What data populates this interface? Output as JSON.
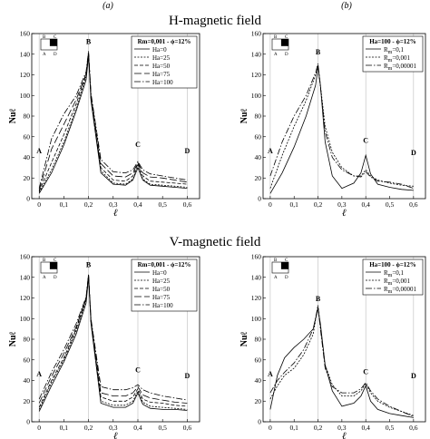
{
  "figure": {
    "panel_labels": [
      "(a)",
      "(b)"
    ],
    "row_titles": [
      "H-magnetic field",
      "V-magnetic field"
    ],
    "xlabel": "ℓ",
    "ylabel": "Nuℓ",
    "inset_corner_labels": [
      "B",
      "C",
      "A",
      "D"
    ]
  },
  "chart_data": [
    {
      "type": "line",
      "row": 0,
      "col": 0,
      "legend_title": "Rm=0,001 - ϕ=12%",
      "legend_position": "top-right",
      "xlim": [
        -0.03,
        0.65
      ],
      "ylim": [
        0,
        160
      ],
      "xticks": [
        "0",
        "0,1",
        "0,2",
        "0,3",
        "0,4",
        "0,5",
        "0,6"
      ],
      "yticks": [
        "0",
        "20",
        "40",
        "60",
        "80",
        "100",
        "120",
        "140",
        "160"
      ],
      "point_labels": [
        {
          "text": "A",
          "x": 0.0,
          "y": 44
        },
        {
          "text": "B",
          "x": 0.2,
          "y": 150
        },
        {
          "text": "C",
          "x": 0.4,
          "y": 50
        },
        {
          "text": "D",
          "x": 0.6,
          "y": 44
        }
      ],
      "series": [
        {
          "name": "Ha=0",
          "dash": "solid",
          "x": [
            0,
            0.05,
            0.1,
            0.15,
            0.19,
            0.2,
            0.21,
            0.25,
            0.3,
            0.35,
            0.38,
            0.4,
            0.42,
            0.45,
            0.5,
            0.55,
            0.6
          ],
          "y": [
            5,
            25,
            52,
            85,
            115,
            138,
            95,
            25,
            14,
            13,
            18,
            30,
            18,
            13,
            12,
            11,
            10
          ]
        },
        {
          "name": "Ha=25",
          "dash": "2,1.5",
          "x": [
            0,
            0.05,
            0.1,
            0.15,
            0.19,
            0.2,
            0.21,
            0.25,
            0.3,
            0.35,
            0.38,
            0.4,
            0.42,
            0.45,
            0.5,
            0.55,
            0.6
          ],
          "y": [
            6,
            28,
            55,
            88,
            118,
            140,
            96,
            27,
            15,
            14,
            19,
            32,
            19,
            14,
            13,
            12,
            11
          ]
        },
        {
          "name": "Ha=50",
          "dash": "4,2",
          "x": [
            0,
            0.05,
            0.1,
            0.15,
            0.19,
            0.2,
            0.21,
            0.25,
            0.3,
            0.35,
            0.38,
            0.4,
            0.42,
            0.45,
            0.5,
            0.55,
            0.6
          ],
          "y": [
            7,
            35,
            62,
            92,
            120,
            141,
            98,
            30,
            18,
            17,
            22,
            34,
            22,
            17,
            16,
            15,
            14
          ]
        },
        {
          "name": "Ha=75",
          "dash": "8,3",
          "x": [
            0,
            0.05,
            0.1,
            0.15,
            0.19,
            0.2,
            0.21,
            0.25,
            0.3,
            0.35,
            0.38,
            0.4,
            0.42,
            0.45,
            0.5,
            0.55,
            0.6
          ],
          "y": [
            8,
            48,
            72,
            96,
            121,
            142,
            100,
            34,
            22,
            21,
            25,
            35,
            25,
            21,
            20,
            18,
            16
          ]
        },
        {
          "name": "Ha=100",
          "dash": "7,2,1.5,2",
          "x": [
            0,
            0.05,
            0.1,
            0.15,
            0.19,
            0.2,
            0.21,
            0.25,
            0.3,
            0.35,
            0.38,
            0.4,
            0.42,
            0.45,
            0.5,
            0.55,
            0.6
          ],
          "y": [
            10,
            58,
            82,
            100,
            123,
            143,
            102,
            38,
            26,
            25,
            28,
            36,
            28,
            24,
            22,
            20,
            18
          ]
        }
      ]
    },
    {
      "type": "line",
      "row": 0,
      "col": 1,
      "legend_title": "Ha=100 - ϕ=12%",
      "legend_position": "top-right",
      "xlim": [
        -0.03,
        0.65
      ],
      "ylim": [
        0,
        160
      ],
      "xticks": [
        "0",
        "0,1",
        "0,2",
        "0,3",
        "0,4",
        "0,5",
        "0,6"
      ],
      "yticks": [
        "0",
        "20",
        "40",
        "60",
        "80",
        "100",
        "120",
        "140",
        "160"
      ],
      "point_labels": [
        {
          "text": "A",
          "x": 0.0,
          "y": 44
        },
        {
          "text": "B",
          "x": 0.2,
          "y": 140
        },
        {
          "text": "C",
          "x": 0.4,
          "y": 54
        },
        {
          "text": "D",
          "x": 0.6,
          "y": 42
        }
      ],
      "series": [
        {
          "name": "Rm=0,1",
          "dash": "solid",
          "x": [
            0,
            0.05,
            0.1,
            0.15,
            0.19,
            0.2,
            0.21,
            0.23,
            0.26,
            0.3,
            0.35,
            0.38,
            0.4,
            0.42,
            0.45,
            0.5,
            0.55,
            0.6
          ],
          "y": [
            5,
            25,
            50,
            80,
            110,
            128,
            110,
            55,
            22,
            10,
            15,
            25,
            42,
            24,
            14,
            11,
            9,
            8
          ]
        },
        {
          "name": "Rm=0,001",
          "dash": "2,1.5",
          "x": [
            0,
            0.05,
            0.1,
            0.15,
            0.19,
            0.2,
            0.21,
            0.23,
            0.26,
            0.3,
            0.35,
            0.38,
            0.4,
            0.42,
            0.45,
            0.5,
            0.55,
            0.6
          ],
          "y": [
            10,
            42,
            70,
            95,
            120,
            130,
            110,
            70,
            45,
            30,
            22,
            22,
            28,
            22,
            18,
            15,
            13,
            12
          ]
        },
        {
          "name": "Rm=0,00001",
          "dash": "7,2,1.5,2",
          "x": [
            0,
            0.05,
            0.1,
            0.15,
            0.19,
            0.2,
            0.21,
            0.23,
            0.26,
            0.3,
            0.35,
            0.38,
            0.4,
            0.42,
            0.45,
            0.5,
            0.55,
            0.6
          ],
          "y": [
            22,
            55,
            80,
            100,
            122,
            131,
            108,
            65,
            40,
            28,
            22,
            21,
            26,
            21,
            17,
            16,
            14,
            10
          ]
        }
      ]
    },
    {
      "type": "line",
      "row": 1,
      "col": 0,
      "legend_title": "Rm=0,001 - ϕ=12%",
      "legend_position": "top-right",
      "xlim": [
        -0.03,
        0.65
      ],
      "ylim": [
        0,
        160
      ],
      "xticks": [
        "0",
        "0,1",
        "0,2",
        "0,3",
        "0,4",
        "0,5",
        "0,6"
      ],
      "yticks": [
        "0",
        "20",
        "40",
        "60",
        "80",
        "100",
        "120",
        "140",
        "160"
      ],
      "point_labels": [
        {
          "text": "A",
          "x": 0.0,
          "y": 44
        },
        {
          "text": "B",
          "x": 0.2,
          "y": 150
        },
        {
          "text": "C",
          "x": 0.4,
          "y": 48
        },
        {
          "text": "D",
          "x": 0.6,
          "y": 42
        }
      ],
      "series": [
        {
          "name": "Ha=0",
          "dash": "solid",
          "x": [
            0,
            0.05,
            0.1,
            0.15,
            0.19,
            0.2,
            0.21,
            0.25,
            0.3,
            0.35,
            0.38,
            0.4,
            0.42,
            0.45,
            0.5,
            0.55,
            0.6
          ],
          "y": [
            10,
            35,
            58,
            85,
            115,
            140,
            95,
            18,
            14,
            14,
            18,
            28,
            17,
            13,
            12,
            12,
            11
          ]
        },
        {
          "name": "Ha=25",
          "dash": "2,1.5",
          "x": [
            0,
            0.05,
            0.1,
            0.15,
            0.19,
            0.2,
            0.21,
            0.25,
            0.3,
            0.35,
            0.38,
            0.4,
            0.42,
            0.45,
            0.5,
            0.55,
            0.6
          ],
          "y": [
            12,
            38,
            60,
            88,
            118,
            141,
            96,
            20,
            16,
            16,
            20,
            30,
            19,
            15,
            14,
            13,
            12
          ]
        },
        {
          "name": "Ha=50",
          "dash": "4,2",
          "x": [
            0,
            0.05,
            0.1,
            0.15,
            0.19,
            0.2,
            0.21,
            0.25,
            0.3,
            0.35,
            0.38,
            0.4,
            0.42,
            0.45,
            0.5,
            0.55,
            0.6
          ],
          "y": [
            14,
            40,
            62,
            90,
            119,
            142,
            97,
            24,
            20,
            20,
            24,
            32,
            22,
            19,
            18,
            16,
            15
          ]
        },
        {
          "name": "Ha=75",
          "dash": "8,3",
          "x": [
            0,
            0.05,
            0.1,
            0.15,
            0.19,
            0.2,
            0.21,
            0.25,
            0.3,
            0.35,
            0.38,
            0.4,
            0.42,
            0.45,
            0.5,
            0.55,
            0.6
          ],
          "y": [
            18,
            44,
            66,
            92,
            120,
            143,
            98,
            28,
            25,
            25,
            28,
            34,
            26,
            23,
            21,
            19,
            18
          ]
        },
        {
          "name": "Ha=100",
          "dash": "7,2,1.5,2",
          "x": [
            0,
            0.05,
            0.1,
            0.15,
            0.19,
            0.2,
            0.21,
            0.25,
            0.3,
            0.35,
            0.38,
            0.4,
            0.42,
            0.45,
            0.5,
            0.55,
            0.6
          ],
          "y": [
            22,
            48,
            70,
            95,
            121,
            143,
            100,
            34,
            31,
            31,
            33,
            36,
            31,
            28,
            25,
            23,
            21
          ]
        }
      ]
    },
    {
      "type": "line",
      "row": 1,
      "col": 1,
      "legend_title": "Ha=100 - ϕ=12%",
      "legend_position": "top-right",
      "xlim": [
        -0.03,
        0.65
      ],
      "ylim": [
        0,
        160
      ],
      "xticks": [
        "0",
        "0,1",
        "0,2",
        "0,3",
        "0,4",
        "0,5",
        "0,6"
      ],
      "yticks": [
        "0",
        "20",
        "40",
        "60",
        "80",
        "100",
        "120",
        "140",
        "160"
      ],
      "point_labels": [
        {
          "text": "A",
          "x": 0.0,
          "y": 44
        },
        {
          "text": "B",
          "x": 0.2,
          "y": 117
        },
        {
          "text": "C",
          "x": 0.4,
          "y": 46
        },
        {
          "text": "D",
          "x": 0.6,
          "y": 42
        }
      ],
      "series": [
        {
          "name": "Rm=0,1",
          "dash": "solid",
          "x": [
            0,
            0.03,
            0.06,
            0.1,
            0.14,
            0.18,
            0.2,
            0.21,
            0.23,
            0.26,
            0.3,
            0.35,
            0.38,
            0.4,
            0.42,
            0.45,
            0.5,
            0.55,
            0.6
          ],
          "y": [
            12,
            45,
            62,
            72,
            80,
            90,
            110,
            95,
            55,
            30,
            15,
            18,
            25,
            35,
            20,
            12,
            8,
            6,
            4
          ]
        },
        {
          "name": "Rm=0,001",
          "dash": "2,1.5",
          "x": [
            0,
            0.03,
            0.06,
            0.1,
            0.14,
            0.18,
            0.2,
            0.21,
            0.23,
            0.26,
            0.3,
            0.35,
            0.38,
            0.4,
            0.42,
            0.45,
            0.5,
            0.55,
            0.6
          ],
          "y": [
            22,
            35,
            45,
            52,
            65,
            85,
            113,
            92,
            55,
            36,
            25,
            25,
            30,
            37,
            28,
            20,
            14,
            10,
            6
          ]
        },
        {
          "name": "Rm=0,00001",
          "dash": "7,2,1.5,2",
          "x": [
            0,
            0.03,
            0.06,
            0.1,
            0.14,
            0.18,
            0.2,
            0.21,
            0.23,
            0.26,
            0.3,
            0.35,
            0.38,
            0.4,
            0.42,
            0.45,
            0.5,
            0.55,
            0.6
          ],
          "y": [
            28,
            40,
            48,
            57,
            70,
            90,
            112,
            90,
            52,
            34,
            28,
            28,
            32,
            38,
            30,
            22,
            15,
            10,
            5
          ]
        }
      ]
    }
  ]
}
